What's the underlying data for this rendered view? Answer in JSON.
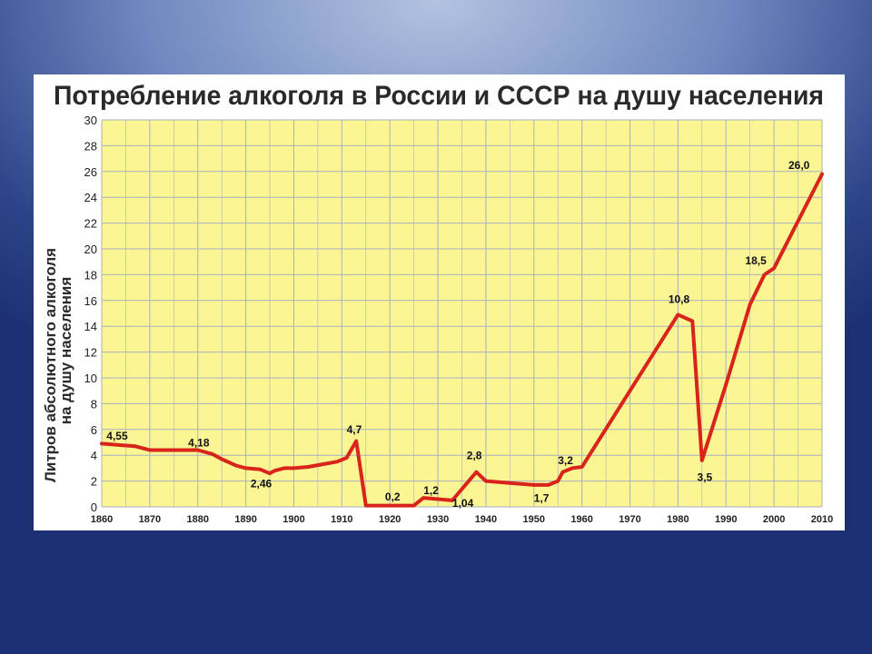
{
  "chart_data": {
    "type": "line",
    "title": "Потребление алкоголя в России и СССР на душу населения",
    "ylabel_line1": "Литров абсолютного алкоголя",
    "ylabel_line2": "на душу населения",
    "xlabel": "",
    "xlim": [
      1860,
      2010
    ],
    "ylim": [
      0,
      30
    ],
    "x_ticks": [
      "1860",
      "1870",
      "1880",
      "1890",
      "1900",
      "1910",
      "1920",
      "1930",
      "1940",
      "1950",
      "1960",
      "1970",
      "1980",
      "1990",
      "2000",
      "2010"
    ],
    "y_ticks": [
      "0",
      "2",
      "4",
      "6",
      "8",
      "10",
      "12",
      "14",
      "16",
      "18",
      "20",
      "22",
      "24",
      "26",
      "28",
      "30"
    ],
    "grid": true,
    "colors": {
      "plot_background": "#fbf593",
      "grid": "#a9b2be",
      "line": "#d9241c"
    },
    "series": [
      {
        "x": [
          1860,
          1867,
          1870,
          1880,
          1883,
          1885,
          1888,
          1890,
          1893,
          1895,
          1896,
          1898,
          1900,
          1903,
          1906,
          1909,
          1911,
          1913,
          1915,
          1920,
          1925,
          1927,
          1930,
          1933,
          1938,
          1940,
          1950,
          1953,
          1955,
          1956,
          1958,
          1960,
          1980,
          1983,
          1985,
          1990,
          1995,
          1998,
          2000,
          2010
        ],
        "y": [
          4.9,
          4.7,
          4.4,
          4.4,
          4.1,
          3.7,
          3.2,
          3.0,
          2.9,
          2.6,
          2.8,
          3.0,
          3.0,
          3.1,
          3.3,
          3.5,
          3.8,
          5.1,
          0.1,
          0.1,
          0.1,
          0.7,
          0.6,
          0.5,
          2.7,
          2.0,
          1.7,
          1.7,
          2.0,
          2.7,
          3.0,
          3.1,
          14.9,
          14.4,
          3.6,
          9.5,
          15.7,
          18.0,
          18.5,
          25.8
        ]
      }
    ],
    "data_labels": [
      {
        "text": "4,55",
        "x": 1861,
        "y": 5.2
      },
      {
        "text": "4,18",
        "x": 1878,
        "y": 4.7
      },
      {
        "text": "2,46",
        "x": 1891,
        "y": 1.5
      },
      {
        "text": "4,7",
        "x": 1911,
        "y": 5.7
      },
      {
        "text": "0,2",
        "x": 1919,
        "y": 0.5
      },
      {
        "text": "1,2",
        "x": 1927,
        "y": 1.0
      },
      {
        "text": "1,04",
        "x": 1933,
        "y": 0.0
      },
      {
        "text": "2,8",
        "x": 1936,
        "y": 3.7
      },
      {
        "text": "1,7",
        "x": 1950,
        "y": 0.4
      },
      {
        "text": "3,2",
        "x": 1955,
        "y": 3.3
      },
      {
        "text": "10,8",
        "x": 1978,
        "y": 15.8
      },
      {
        "text": "3,5",
        "x": 1984,
        "y": 2.0
      },
      {
        "text": "18,5",
        "x": 1994,
        "y": 18.8
      },
      {
        "text": "26,0",
        "x": 2003,
        "y": 26.2
      }
    ]
  }
}
